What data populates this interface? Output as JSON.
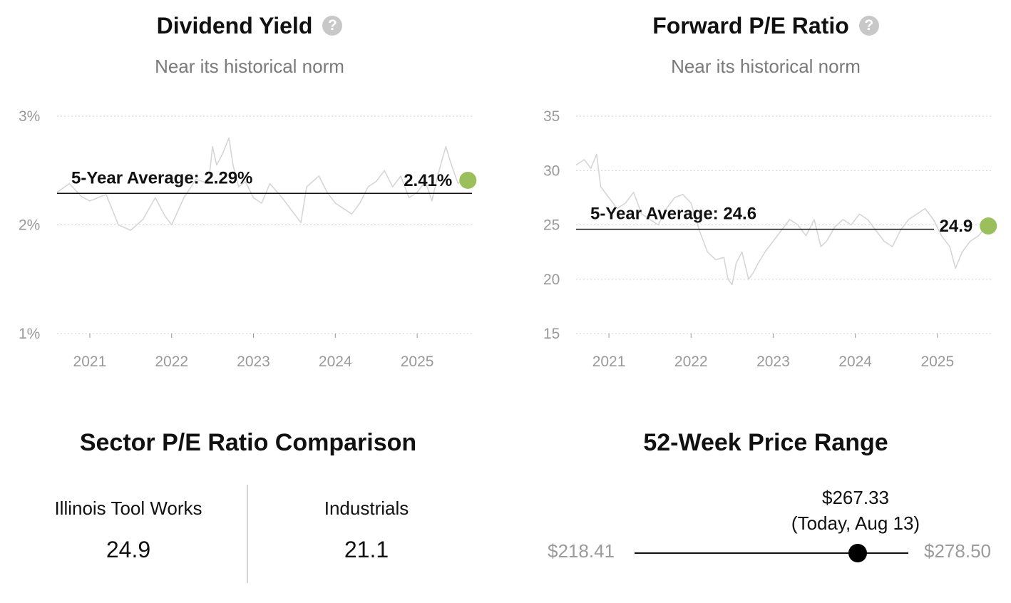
{
  "dividend_yield": {
    "title": "Dividend Yield",
    "subtitle": "Near its historical norm",
    "help_icon": "question-circle-icon",
    "average_label": "5-Year Average: 2.29%",
    "current_label": "2.41%",
    "current_color": "#9bbf5a",
    "line_color": "#d6d6d6"
  },
  "forward_pe": {
    "title": "Forward P/E Ratio",
    "subtitle": "Near its historical norm",
    "help_icon": "question-circle-icon",
    "average_label": "5-Year Average: 24.6",
    "current_label": "24.9",
    "current_color": "#9bbf5a",
    "line_color": "#d6d6d6"
  },
  "sector": {
    "title": "Sector P/E Ratio Comparison",
    "company_name": "Illinois Tool Works",
    "company_value": "24.9",
    "sector_name": "Industrials",
    "sector_value": "21.1"
  },
  "price_range": {
    "title": "52-Week Price Range",
    "low": "$218.41",
    "high": "$278.50",
    "current_price": "$267.33",
    "current_date": "(Today, Aug 13)"
  },
  "chart_data": [
    {
      "type": "line",
      "title": "Dividend Yield",
      "x_ticks": [
        "2021",
        "2022",
        "2023",
        "2024",
        "2025"
      ],
      "y_ticks": [
        "3%",
        "2%",
        "1%"
      ],
      "ylim": [
        1,
        3
      ],
      "xlim": [
        2020.6,
        2025.67
      ],
      "grid": true,
      "average": 2.29,
      "current": {
        "x": 2025.62,
        "y": 2.41
      },
      "series": [
        {
          "x": [
            2020.6,
            2020.75,
            2020.9,
            2021.0,
            2021.2,
            2021.35,
            2021.5,
            2021.65,
            2021.8,
            2021.92,
            2022.0,
            2022.15,
            2022.3,
            2022.45,
            2022.5,
            2022.55,
            2022.62,
            2022.7,
            2022.75,
            2022.82,
            2022.9,
            2023.0,
            2023.1,
            2023.2,
            2023.35,
            2023.5,
            2023.58,
            2023.65,
            2023.8,
            2023.9,
            2024.0,
            2024.1,
            2024.2,
            2024.3,
            2024.4,
            2024.5,
            2024.6,
            2024.7,
            2024.8,
            2024.9,
            2025.0,
            2025.1,
            2025.18,
            2025.25,
            2025.35,
            2025.42,
            2025.5,
            2025.6
          ],
          "values": [
            2.3,
            2.38,
            2.26,
            2.22,
            2.28,
            2.0,
            1.95,
            2.05,
            2.25,
            2.08,
            2.0,
            2.25,
            2.42,
            2.38,
            2.72,
            2.55,
            2.65,
            2.8,
            2.55,
            2.35,
            2.4,
            2.25,
            2.2,
            2.38,
            2.25,
            2.1,
            2.02,
            2.35,
            2.45,
            2.3,
            2.2,
            2.15,
            2.1,
            2.2,
            2.35,
            2.4,
            2.5,
            2.35,
            2.45,
            2.25,
            2.3,
            2.4,
            2.22,
            2.45,
            2.72,
            2.55,
            2.38,
            2.45
          ]
        }
      ]
    },
    {
      "type": "line",
      "title": "Forward P/E Ratio",
      "x_ticks": [
        "2021",
        "2022",
        "2023",
        "2024",
        "2025"
      ],
      "y_ticks": [
        "35",
        "30",
        "25",
        "20",
        "15"
      ],
      "ylim": [
        15,
        35
      ],
      "xlim": [
        2020.6,
        2025.67
      ],
      "grid": true,
      "average": 24.6,
      "current": {
        "x": 2025.62,
        "y": 24.9
      },
      "series": [
        {
          "x": [
            2020.6,
            2020.7,
            2020.78,
            2020.85,
            2020.9,
            2021.0,
            2021.1,
            2021.2,
            2021.3,
            2021.4,
            2021.5,
            2021.6,
            2021.7,
            2021.8,
            2021.9,
            2022.0,
            2022.1,
            2022.2,
            2022.3,
            2022.4,
            2022.45,
            2022.5,
            2022.55,
            2022.62,
            2022.7,
            2022.75,
            2022.82,
            2022.9,
            2023.0,
            2023.1,
            2023.2,
            2023.3,
            2023.4,
            2023.5,
            2023.58,
            2023.65,
            2023.75,
            2023.85,
            2023.95,
            2024.05,
            2024.15,
            2024.25,
            2024.35,
            2024.45,
            2024.55,
            2024.65,
            2024.75,
            2024.85,
            2024.95,
            2025.05,
            2025.15,
            2025.22,
            2025.3,
            2025.4,
            2025.5,
            2025.6
          ],
          "values": [
            30.5,
            31.0,
            30.2,
            31.5,
            28.5,
            27.5,
            26.5,
            27.0,
            28.0,
            26.0,
            25.5,
            25.0,
            26.5,
            27.5,
            27.8,
            27.0,
            24.5,
            22.5,
            21.8,
            22.0,
            20.0,
            19.5,
            21.5,
            22.5,
            20.0,
            20.5,
            21.5,
            22.5,
            23.5,
            24.5,
            25.5,
            25.0,
            24.0,
            25.5,
            23.0,
            23.5,
            24.8,
            25.5,
            25.0,
            26.0,
            25.5,
            24.5,
            23.5,
            23.0,
            24.5,
            25.5,
            26.0,
            26.5,
            25.5,
            24.0,
            23.0,
            21.0,
            22.5,
            23.5,
            24.0,
            24.9
          ]
        }
      ]
    }
  ]
}
